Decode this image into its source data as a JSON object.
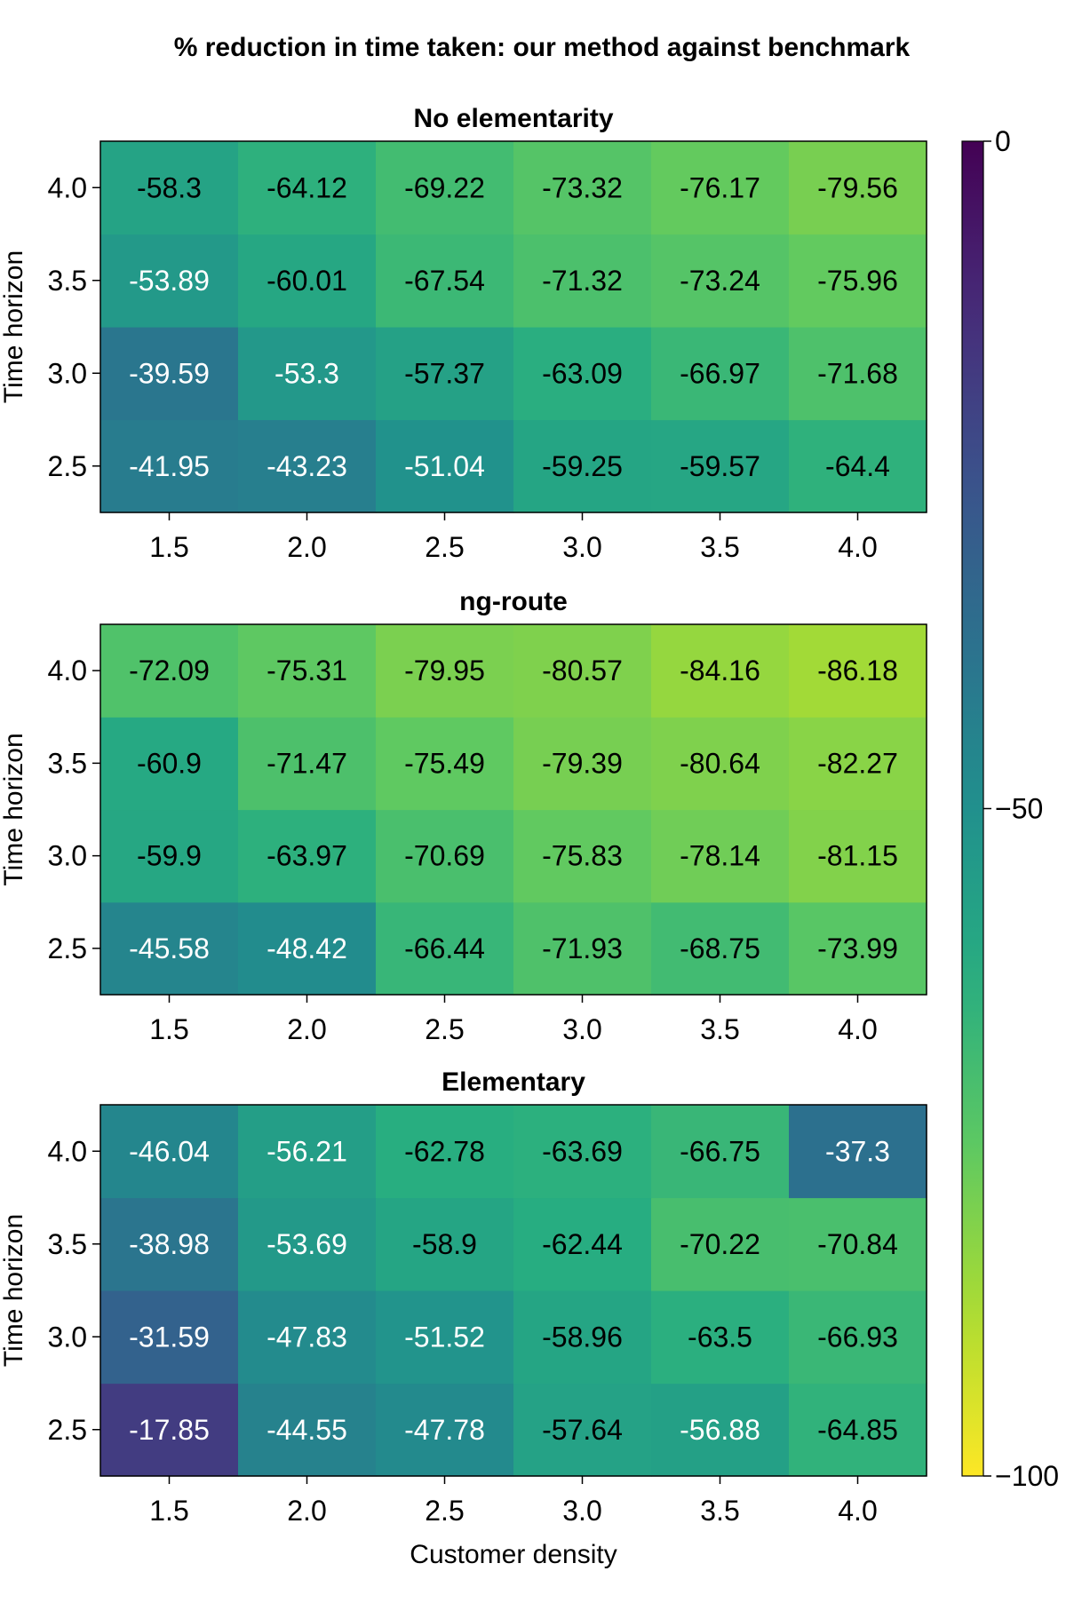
{
  "title": "% reduction in time taken: our method against benchmark",
  "chart_data": [
    {
      "type": "heatmap",
      "title": "No elementarity",
      "xlabel": "",
      "ylabel": "Time horizon",
      "x": [
        "1.5",
        "2.0",
        "2.5",
        "3.0",
        "3.5",
        "4.0"
      ],
      "y": [
        "2.5",
        "3.0",
        "3.5",
        "4.0"
      ],
      "values": [
        [
          -41.95,
          -43.23,
          -51.04,
          -59.25,
          -59.57,
          -64.4
        ],
        [
          -39.59,
          -53.3,
          -57.37,
          -63.09,
          -66.97,
          -71.68
        ],
        [
          -53.89,
          -60.01,
          -67.54,
          -71.32,
          -73.24,
          -75.96
        ],
        [
          -58.3,
          -64.12,
          -69.22,
          -73.32,
          -76.17,
          -79.56
        ]
      ]
    },
    {
      "type": "heatmap",
      "title": "ng-route",
      "xlabel": "",
      "ylabel": "Time horizon",
      "x": [
        "1.5",
        "2.0",
        "2.5",
        "3.0",
        "3.5",
        "4.0"
      ],
      "y": [
        "2.5",
        "3.0",
        "3.5",
        "4.0"
      ],
      "values": [
        [
          -45.58,
          -48.42,
          -66.44,
          -71.93,
          -68.75,
          -73.99
        ],
        [
          -59.9,
          -63.97,
          -70.69,
          -75.83,
          -78.14,
          -81.15
        ],
        [
          -60.9,
          -71.47,
          -75.49,
          -79.39,
          -80.64,
          -82.27
        ],
        [
          -72.09,
          -75.31,
          -79.95,
          -80.57,
          -84.16,
          -86.18
        ]
      ]
    },
    {
      "type": "heatmap",
      "title": "Elementary",
      "xlabel": "Customer density",
      "ylabel": "Time horizon",
      "x": [
        "1.5",
        "2.0",
        "2.5",
        "3.0",
        "3.5",
        "4.0"
      ],
      "y": [
        "2.5",
        "3.0",
        "3.5",
        "4.0"
      ],
      "values": [
        [
          -17.85,
          -44.55,
          -47.78,
          -57.64,
          -56.88,
          -64.85
        ],
        [
          -31.59,
          -47.83,
          -51.52,
          -58.96,
          -63.5,
          -66.93
        ],
        [
          -38.98,
          -53.69,
          -58.9,
          -62.44,
          -70.22,
          -70.84
        ],
        [
          -46.04,
          -56.21,
          -62.78,
          -63.69,
          -66.75,
          -37.3
        ]
      ]
    }
  ],
  "colorbar": {
    "colormap": "viridis",
    "range": [
      -100,
      0
    ],
    "ticks": [
      0,
      -50,
      -100
    ],
    "tick_labels": [
      "0",
      "−50",
      "−100"
    ]
  }
}
